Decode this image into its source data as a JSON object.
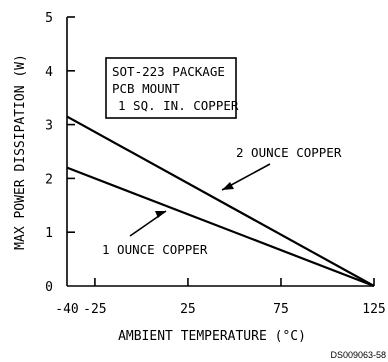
{
  "chart_data": {
    "type": "line",
    "xlabel": "AMBIENT TEMPERATURE (°C)",
    "ylabel": "MAX POWER DISSIPATION (W)",
    "xlim": [
      -40,
      125
    ],
    "ylim": [
      0,
      5
    ],
    "x_ticks": [
      "-40",
      "-25",
      "25",
      "75",
      "125"
    ],
    "x_tick_values": [
      -40,
      -25,
      25,
      75,
      125
    ],
    "y_ticks": [
      "0",
      "1",
      "2",
      "3",
      "4",
      "5"
    ],
    "y_tick_values": [
      0,
      1,
      2,
      3,
      4,
      5
    ],
    "grid": false,
    "legend": "none",
    "series": [
      {
        "name": "2 OUNCE COPPER",
        "x": [
          -40,
          125
        ],
        "y": [
          3.15,
          0
        ]
      },
      {
        "name": "1 OUNCE COPPER",
        "x": [
          -40,
          125
        ],
        "y": [
          2.2,
          0
        ]
      }
    ],
    "annotation_box": [
      "SOT-223 PACKAGE",
      "PCB MOUNT",
      "1 SQ. IN. COPPER"
    ],
    "series_labels": {
      "upper": "2 OUNCE COPPER",
      "lower": "1 OUNCE COPPER"
    },
    "doc_code": "DS009063-58"
  }
}
